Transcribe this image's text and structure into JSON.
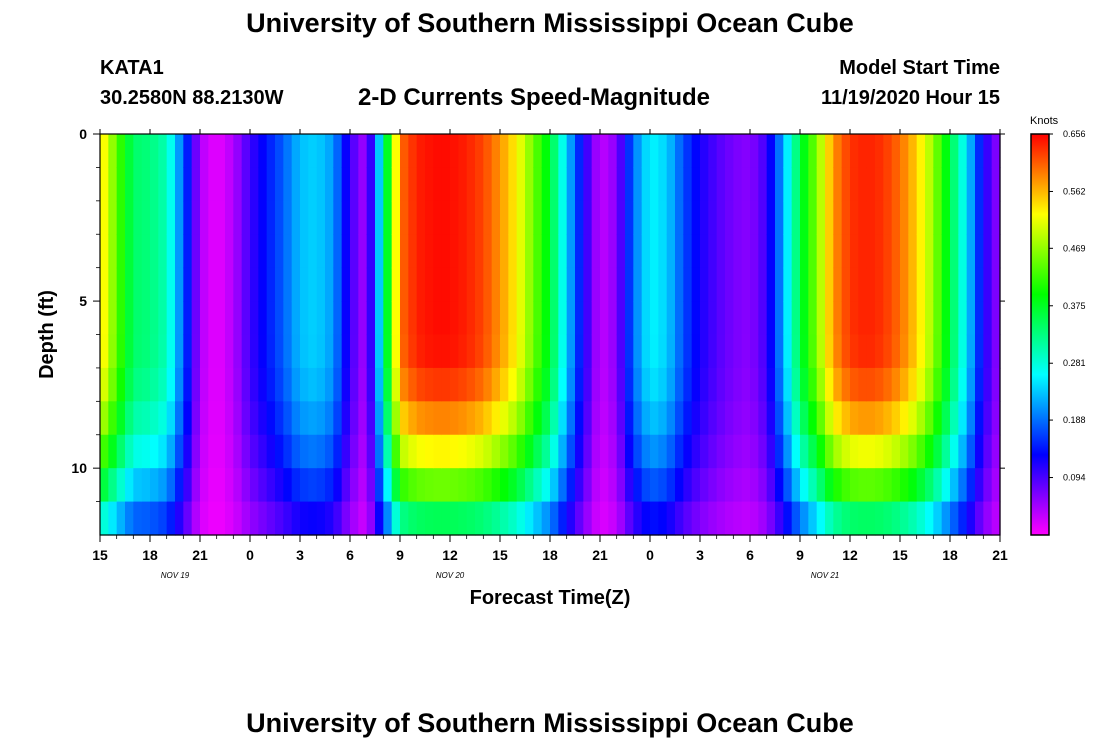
{
  "header": {
    "title": "University of Southern Mississippi Ocean Cube",
    "station": "KATA1",
    "coordinates": "30.2580N 88.2130W",
    "subtitle": "2-D Currents Speed-Magnitude",
    "model_start_label": "Model Start Time",
    "model_start_value": "11/19/2020 Hour 15"
  },
  "footer": {
    "title": "University of Southern Mississippi Ocean Cube"
  },
  "chart_data": {
    "type": "heatmap",
    "title": "2-D Currents Speed-Magnitude",
    "xlabel": "Forecast Time(Z)",
    "ylabel": "Depth (ft)",
    "x_unit": "hours since 11/19/2020 15Z",
    "xlim": [
      0,
      54
    ],
    "ylim": [
      12,
      0
    ],
    "x_ticks": [
      {
        "x": 0,
        "label": "15"
      },
      {
        "x": 3,
        "label": "18"
      },
      {
        "x": 6,
        "label": "21"
      },
      {
        "x": 9,
        "label": "0"
      },
      {
        "x": 12,
        "label": "3"
      },
      {
        "x": 15,
        "label": "6"
      },
      {
        "x": 18,
        "label": "9"
      },
      {
        "x": 21,
        "label": "12"
      },
      {
        "x": 24,
        "label": "15"
      },
      {
        "x": 27,
        "label": "18"
      },
      {
        "x": 30,
        "label": "21"
      },
      {
        "x": 33,
        "label": "0"
      },
      {
        "x": 36,
        "label": "3"
      },
      {
        "x": 39,
        "label": "6"
      },
      {
        "x": 42,
        "label": "9"
      },
      {
        "x": 45,
        "label": "12"
      },
      {
        "x": 48,
        "label": "15"
      },
      {
        "x": 51,
        "label": "18"
      },
      {
        "x": 54,
        "label": "21"
      }
    ],
    "date_labels": [
      {
        "x": 4.5,
        "label": "NOV 19"
      },
      {
        "x": 21,
        "label": "NOV 20"
      },
      {
        "x": 43.5,
        "label": "NOV 21"
      }
    ],
    "y_ticks": [
      {
        "y": 0,
        "label": "0"
      },
      {
        "y": 5,
        "label": "5"
      },
      {
        "y": 10,
        "label": "10"
      }
    ],
    "colorbar": {
      "label": "Knots",
      "min": 0.0,
      "max": 0.656,
      "tick_labels": [
        "0.656",
        "0.562",
        "0.469",
        "0.375",
        "0.281",
        "0.188",
        "0.094"
      ],
      "tick_values": [
        0.656,
        0.562,
        0.469,
        0.375,
        0.281,
        0.188,
        0.094
      ]
    },
    "depth_levels_ft": [
      0.5,
      1.5,
      2.5,
      3.5,
      4.5,
      5.5,
      6.5,
      7.5,
      8.5,
      9.5,
      10.5,
      11.5
    ],
    "surface_speed_knots": [
      {
        "t": 0,
        "v": 0.55
      },
      {
        "t": 1,
        "v": 0.44
      },
      {
        "t": 2,
        "v": 0.34
      },
      {
        "t": 3,
        "v": 0.33
      },
      {
        "t": 4,
        "v": 0.3
      },
      {
        "t": 5,
        "v": 0.18
      },
      {
        "t": 6,
        "v": 0.04
      },
      {
        "t": 7,
        "v": 0.01
      },
      {
        "t": 8,
        "v": 0.04
      },
      {
        "t": 9,
        "v": 0.1
      },
      {
        "t": 10,
        "v": 0.14
      },
      {
        "t": 11,
        "v": 0.18
      },
      {
        "t": 12,
        "v": 0.23
      },
      {
        "t": 13,
        "v": 0.24
      },
      {
        "t": 14,
        "v": 0.21
      },
      {
        "t": 15,
        "v": 0.1
      },
      {
        "t": 16,
        "v": 0.04
      },
      {
        "t": 17,
        "v": 0.3
      },
      {
        "t": 18,
        "v": 0.6
      },
      {
        "t": 19,
        "v": 0.64
      },
      {
        "t": 20,
        "v": 0.65
      },
      {
        "t": 21,
        "v": 0.65
      },
      {
        "t": 22,
        "v": 0.64
      },
      {
        "t": 23,
        "v": 0.62
      },
      {
        "t": 24,
        "v": 0.58
      },
      {
        "t": 25,
        "v": 0.53
      },
      {
        "t": 26,
        "v": 0.45
      },
      {
        "t": 27,
        "v": 0.37
      },
      {
        "t": 28,
        "v": 0.24
      },
      {
        "t": 29,
        "v": 0.12
      },
      {
        "t": 30,
        "v": 0.03
      },
      {
        "t": 31,
        "v": 0.06
      },
      {
        "t": 32,
        "v": 0.19
      },
      {
        "t": 33,
        "v": 0.26
      },
      {
        "t": 34,
        "v": 0.24
      },
      {
        "t": 35,
        "v": 0.17
      },
      {
        "t": 36,
        "v": 0.12
      },
      {
        "t": 37,
        "v": 0.09
      },
      {
        "t": 38,
        "v": 0.07
      },
      {
        "t": 39,
        "v": 0.06
      },
      {
        "t": 40,
        "v": 0.1
      },
      {
        "t": 41,
        "v": 0.22
      },
      {
        "t": 42,
        "v": 0.36
      },
      {
        "t": 43,
        "v": 0.46
      },
      {
        "t": 44,
        "v": 0.58
      },
      {
        "t": 45,
        "v": 0.63
      },
      {
        "t": 46,
        "v": 0.64
      },
      {
        "t": 47,
        "v": 0.63
      },
      {
        "t": 48,
        "v": 0.6
      },
      {
        "t": 49,
        "v": 0.55
      },
      {
        "t": 50,
        "v": 0.47
      },
      {
        "t": 51,
        "v": 0.36
      },
      {
        "t": 52,
        "v": 0.25
      },
      {
        "t": 53,
        "v": 0.12
      },
      {
        "t": 54,
        "v": 0.05
      }
    ]
  }
}
